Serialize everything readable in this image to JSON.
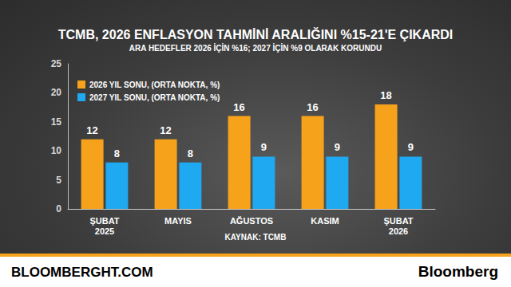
{
  "chart_data": {
    "type": "bar",
    "title": "TCMB, 2026 ENFLASYON TAHMİNİ ARALIĞINI %15-21'E ÇIKARDI",
    "subtitle": "ARA HEDEFLER 2026 İÇİN %16; 2027 İÇİN %9 OLARAK KORUNDU",
    "categories": [
      "ŞUBAT\n2025",
      "MAYIS",
      "AĞUSTOS",
      "KASIM",
      "ŞUBAT\n2026"
    ],
    "series": [
      {
        "name": "2026 YIL SONU, (ORTA NOKTA, %)",
        "color": "#f7a21b",
        "values": [
          12,
          12,
          16,
          16,
          18
        ]
      },
      {
        "name": "2027 YIL SONU, (ORTA NOKTA, %)",
        "color": "#1fa9f0",
        "values": [
          8,
          8,
          9,
          9,
          9
        ]
      }
    ],
    "ylim": [
      0,
      25
    ],
    "yticks": [
      0,
      5,
      10,
      15,
      20,
      25
    ],
    "grid": false,
    "legend": "top-left",
    "data_labels": true,
    "source": "KAYNAK: TCMB",
    "footer": [
      "BLOOMBERGHT.COM",
      "Bloomberg"
    ]
  }
}
